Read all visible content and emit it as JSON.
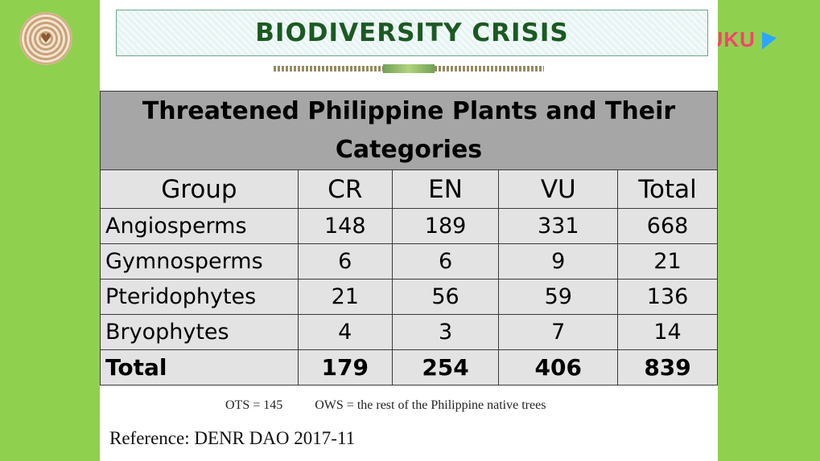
{
  "banner": {
    "title": "BIODIVERSITY CRISIS"
  },
  "watermark": {
    "brand": "YOUKU"
  },
  "table": {
    "title": "Threatened Philippine Plants and Their Categories",
    "headers": [
      "Group",
      "CR",
      "EN",
      "VU",
      "Total"
    ],
    "rows": [
      [
        "Angiosperms",
        "148",
        "189",
        "331",
        "668"
      ],
      [
        "Gymnosperms",
        "6",
        "6",
        "9",
        "21"
      ],
      [
        "Pteridophytes",
        "21",
        "56",
        "59",
        "136"
      ],
      [
        "Bryophytes",
        "4",
        "3",
        "7",
        "14"
      ]
    ],
    "total_row": [
      "Total",
      "179",
      "254",
      "406",
      "839"
    ]
  },
  "footnote": {
    "ots": "OTS = 145",
    "ows": "OWS = the rest of the Philippine native trees"
  },
  "reference": "Reference: DENR DAO 2017-11",
  "colors": {
    "background": "#8fd14f",
    "banner_text": "#1b5a22",
    "title_band": "#a6a6a6",
    "table_fill": "#e3e3e3",
    "brand": "#ff3f6c"
  }
}
